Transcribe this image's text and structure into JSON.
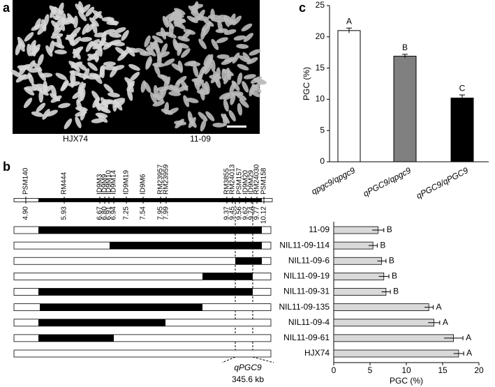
{
  "panel_a": {
    "label": "a",
    "captions": [
      "HJX74",
      "11-09"
    ]
  },
  "panel_b": {
    "label": "b",
    "markers": [
      "PSM140",
      "RM444",
      "ID9M3",
      "ID9M9",
      "ID9M10",
      "ID9M14",
      "ID9M19",
      "ID9M6",
      "RM23957",
      "RM23959",
      "RM3855",
      "RM24013",
      "PSM157",
      "ID9M20",
      "ID9M29",
      "RM24030",
      "PSM158"
    ],
    "positions": [
      "4.90",
      "5.93",
      "6.67",
      "6.80",
      "6.91",
      "6.94",
      "7.25",
      "7.54",
      "7.95",
      "7.99",
      "9.37",
      "9.45",
      "9.56",
      "9.62",
      "9.74",
      "9.77",
      "10.12"
    ],
    "gene": "qPGC9",
    "interval": "345.6 kb"
  },
  "chart_data": [
    {
      "type": "bar",
      "label": "c",
      "ylabel": "PGC (%)",
      "categories": [
        "qpgc9/qpgc9",
        "qPGC9/qpgc9",
        "qPGC9/qPGC9"
      ],
      "values": [
        21.0,
        16.9,
        10.2
      ],
      "errors": [
        0.4,
        0.3,
        0.5
      ],
      "labels": [
        "A",
        "B",
        "C"
      ],
      "colors": [
        "#ffffff",
        "#808080",
        "#000000"
      ],
      "ylim": [
        0,
        25
      ],
      "yticks": [
        0,
        5,
        10,
        15,
        20,
        25
      ]
    },
    {
      "type": "hbar",
      "xlabel": "PGC (%)",
      "categories": [
        "11-09",
        "NIL11-09-114",
        "NIL11-09-6",
        "NIL11-09-19",
        "NIL11-09-31",
        "NIL11-09-135",
        "NIL11-09-4",
        "NIL11-09-61",
        "HJX74"
      ],
      "values": [
        6.1,
        5.4,
        6.6,
        6.9,
        7.2,
        13.1,
        13.8,
        16.5,
        17.2
      ],
      "errors": [
        0.8,
        0.6,
        0.6,
        0.7,
        0.6,
        0.6,
        0.8,
        1.3,
        0.7
      ],
      "labels": [
        "B",
        "B",
        "B",
        "B",
        "B",
        "A",
        "A",
        "A",
        "A"
      ],
      "color": "#d9d9d9",
      "xlim": [
        0,
        20
      ],
      "xticks": [
        0,
        5,
        10,
        15,
        20
      ]
    }
  ]
}
